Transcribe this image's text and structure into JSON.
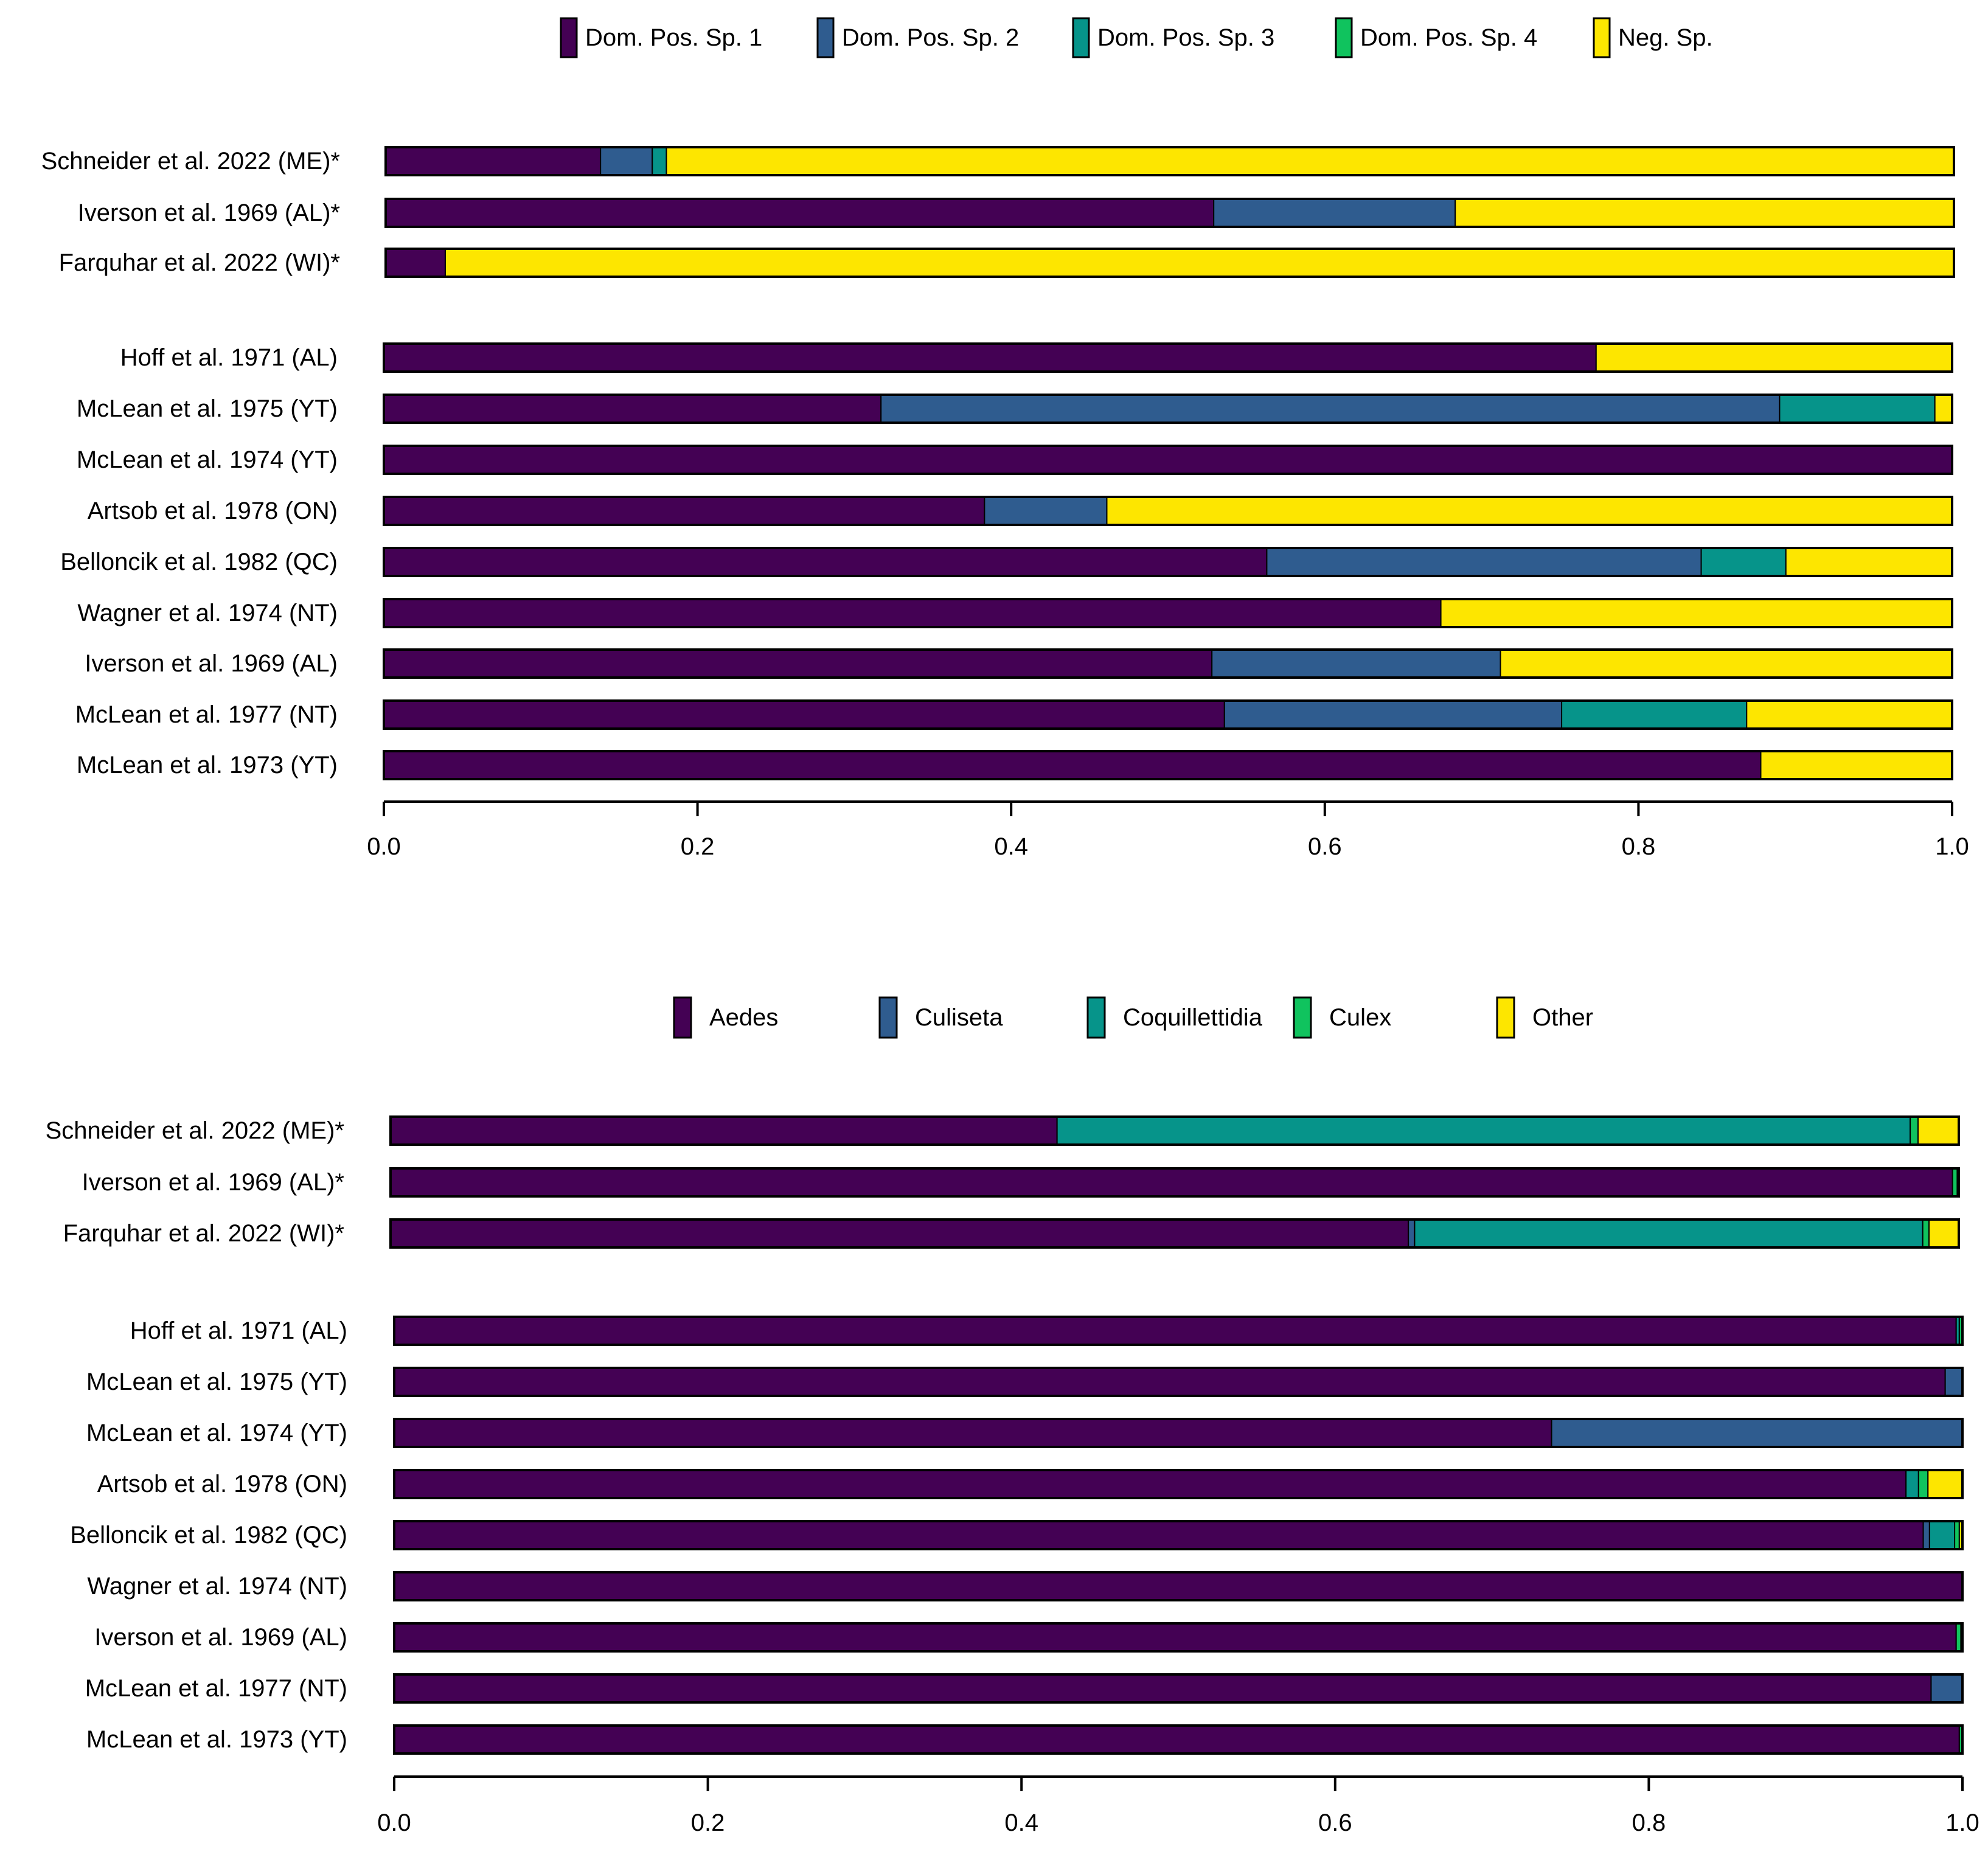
{
  "colors": {
    "c1": "#440154",
    "c2": "#2f5c8f",
    "c3": "#06948a",
    "c4": "#10c35e",
    "c5": "#fde600",
    "stroke": "#000000"
  },
  "chart_data": [
    {
      "id": "top",
      "type": "bar",
      "orientation": "horizontal",
      "stacked": true,
      "title": "",
      "xlabel": "",
      "ylabel": "",
      "xlim": [
        0,
        1
      ],
      "xticks": [
        "0.0",
        "0.2",
        "0.4",
        "0.6",
        "0.8",
        "1.0"
      ],
      "legend_position": "top",
      "legend": [
        "Dom. Pos. Sp. 1",
        "Dom. Pos. Sp. 2",
        "Dom. Pos. Sp. 3",
        "Dom. Pos. Sp. 4",
        "Neg. Sp."
      ],
      "groups": [
        {
          "categories": [
            "Schneider et al. 2022 (ME)*",
            "Iverson et al. 1969 (AL)*",
            "Farquhar et al. 2022 (WI)*"
          ],
          "series": [
            {
              "name": "Dom. Pos. Sp. 1",
              "values": [
                0.137,
                0.528,
                0.038
              ]
            },
            {
              "name": "Dom. Pos. Sp. 2",
              "values": [
                0.033,
                0.154,
                0.0
              ]
            },
            {
              "name": "Dom. Pos. Sp. 3",
              "values": [
                0.009,
                0.0,
                0.0
              ]
            },
            {
              "name": "Dom. Pos. Sp. 4",
              "values": [
                0.0,
                0.0,
                0.0
              ]
            },
            {
              "name": "Neg. Sp.",
              "values": [
                0.821,
                0.318,
                0.962
              ]
            }
          ]
        },
        {
          "categories": [
            "Hoff et al. 1971 (AL)",
            "McLean et al. 1975 (YT)",
            "McLean et al. 1974 (YT)",
            "Artsob et al. 1978 (ON)",
            "Belloncik et al. 1982 (QC)",
            "Wagner et al. 1974 (NT)",
            "Iverson et al. 1969 (AL)",
            "McLean et al. 1977 (NT)",
            "McLean et al. 1973 (YT)"
          ],
          "series": [
            {
              "name": "Dom. Pos. Sp. 1",
              "values": [
                0.773,
                0.317,
                1.0,
                0.383,
                0.563,
                0.674,
                0.528,
                0.536,
                0.878
              ]
            },
            {
              "name": "Dom. Pos. Sp. 2",
              "values": [
                0.0,
                0.573,
                0.0,
                0.078,
                0.277,
                0.0,
                0.184,
                0.215,
                0.0
              ]
            },
            {
              "name": "Dom. Pos. Sp. 3",
              "values": [
                0.0,
                0.099,
                0.0,
                0.0,
                0.054,
                0.0,
                0.0,
                0.118,
                0.0
              ]
            },
            {
              "name": "Dom. Pos. Sp. 4",
              "values": [
                0.0,
                0.0,
                0.0,
                0.0,
                0.0,
                0.0,
                0.0,
                0.0,
                0.0
              ]
            },
            {
              "name": "Neg. Sp.",
              "values": [
                0.227,
                0.011,
                0.0,
                0.539,
                0.106,
                0.326,
                0.288,
                0.131,
                0.122
              ]
            }
          ]
        }
      ]
    },
    {
      "id": "bottom",
      "type": "bar",
      "orientation": "horizontal",
      "stacked": true,
      "title": "",
      "xlabel": "",
      "ylabel": "",
      "xlim": [
        0,
        1
      ],
      "xticks": [
        "0.0",
        "0.2",
        "0.4",
        "0.6",
        "0.8",
        "1.0"
      ],
      "legend_position": "top",
      "legend": [
        "Aedes",
        "Culiseta",
        "Coquillettidia",
        "Culex",
        "Other"
      ],
      "groups": [
        {
          "categories": [
            "Schneider et al. 2022 (ME)*",
            "Iverson et al. 1969 (AL)*",
            "Farquhar et al. 2022 (WI)*"
          ],
          "series": [
            {
              "name": "Aedes",
              "values": [
                0.425,
                0.996,
                0.649
              ]
            },
            {
              "name": "Culiseta",
              "values": [
                0.0,
                0.0,
                0.004
              ]
            },
            {
              "name": "Coquillettidia",
              "values": [
                0.544,
                0.0,
                0.324
              ]
            },
            {
              "name": "Culex",
              "values": [
                0.005,
                0.003,
                0.004
              ]
            },
            {
              "name": "Other",
              "values": [
                0.026,
                0.001,
                0.019
              ]
            }
          ]
        },
        {
          "categories": [
            "Hoff et al. 1971 (AL)",
            "McLean et al. 1975 (YT)",
            "McLean et al. 1974 (YT)",
            "Artsob et al. 1978 (ON)",
            "Belloncik et al. 1982 (QC)",
            "Wagner et al. 1974 (NT)",
            "Iverson et al. 1969 (AL)",
            "McLean et al. 1977 (NT)",
            "McLean et al. 1973 (YT)"
          ],
          "series": [
            {
              "name": "Aedes",
              "values": [
                0.996,
                0.989,
                0.738,
                0.964,
                0.975,
                1.0,
                0.996,
                0.98,
                0.998
              ]
            },
            {
              "name": "Culiseta",
              "values": [
                0.0,
                0.011,
                0.262,
                0.0,
                0.004,
                0.0,
                0.0,
                0.02,
                0.0
              ]
            },
            {
              "name": "Coquillettidia",
              "values": [
                0.002,
                0.0,
                0.0,
                0.008,
                0.016,
                0.0,
                0.0,
                0.0,
                0.0
              ]
            },
            {
              "name": "Culex",
              "values": [
                0.002,
                0.0,
                0.0,
                0.006,
                0.003,
                0.0,
                0.003,
                0.0,
                0.002
              ]
            },
            {
              "name": "Other",
              "values": [
                0.0,
                0.0,
                0.0,
                0.022,
                0.002,
                0.0,
                0.001,
                0.0,
                0.0
              ]
            }
          ]
        }
      ]
    }
  ]
}
